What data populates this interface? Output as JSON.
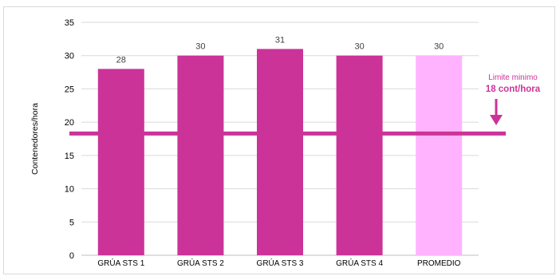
{
  "chart_data": {
    "type": "bar",
    "categories": [
      "GRÚA STS 1",
      "GRÚA STS 2",
      "GRÚA STS 3",
      "GRÚA STS 4",
      "PROMEDIO"
    ],
    "values": [
      28,
      30,
      31,
      30,
      30
    ],
    "data_labels": [
      "28",
      "30",
      "31",
      "30",
      "30"
    ],
    "ylabel": "Contenedores/hora",
    "xlabel": "",
    "ylim": [
      0,
      35
    ],
    "yticks": [
      0,
      5,
      10,
      15,
      20,
      25,
      30,
      35
    ],
    "grid": "horizontal",
    "bar_colors": [
      "#cc3399",
      "#cc3399",
      "#cc3399",
      "#cc3399",
      "#ffb3ff"
    ],
    "reference_line": {
      "value": 18.3,
      "color": "#cc3399"
    },
    "annotation": {
      "line1": "Limite minimo",
      "line2": "18 cont/hora",
      "color": "#cc3399"
    }
  }
}
